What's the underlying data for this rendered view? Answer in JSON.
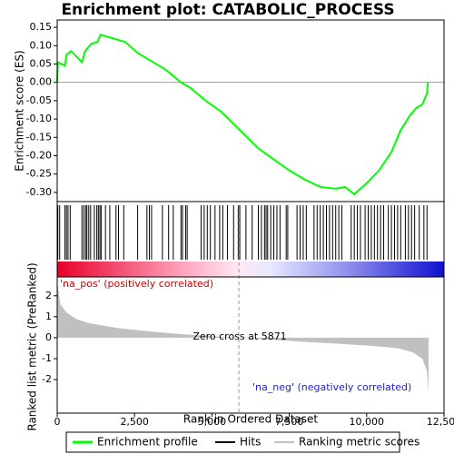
{
  "chart_data": [
    {
      "type": "line",
      "title": "Enrichment plot: CATABOLIC_PROCESS",
      "ylabel": "Enrichment score (ES)",
      "ylim": [
        -0.325,
        0.17
      ],
      "yticks": [
        {
          "value": -0.3,
          "label": "-0.30"
        },
        {
          "value": -0.25,
          "label": "-0.25"
        },
        {
          "value": -0.2,
          "label": "-0.20"
        },
        {
          "value": -0.15,
          "label": "-0.15"
        },
        {
          "value": -0.1,
          "label": "-0.10"
        },
        {
          "value": -0.05,
          "label": "-0.05"
        },
        {
          "value": 0,
          "label": "0.00"
        },
        {
          "value": 0.05,
          "label": "0.05"
        },
        {
          "value": 0.1,
          "label": "0.10"
        },
        {
          "value": 0.15,
          "label": "0.15"
        }
      ],
      "series": [
        {
          "name": "Enrichment profile",
          "color": "#00ff00",
          "x": [
            0,
            20,
            250,
            300,
            450,
            800,
            900,
            1100,
            1300,
            1400,
            1800,
            2000,
            2200,
            2600,
            3000,
            3500,
            4000,
            4300,
            4800,
            5300,
            5900,
            6500,
            7000,
            7500,
            8000,
            8500,
            9000,
            9300,
            9600,
            10000,
            10400,
            10800,
            11100,
            11400,
            11600,
            11800,
            11950,
            11980
          ],
          "values": [
            0.0,
            0.055,
            0.045,
            0.075,
            0.085,
            0.055,
            0.085,
            0.105,
            0.11,
            0.13,
            0.12,
            0.115,
            0.11,
            0.08,
            0.06,
            0.035,
            0.0,
            -0.015,
            -0.05,
            -0.08,
            -0.13,
            -0.18,
            -0.21,
            -0.24,
            -0.265,
            -0.285,
            -0.29,
            -0.285,
            -0.305,
            -0.275,
            -0.24,
            -0.19,
            -0.13,
            -0.09,
            -0.07,
            -0.06,
            -0.03,
            0.0
          ]
        }
      ]
    },
    {
      "type": "hits",
      "series": [
        {
          "name": "Hits",
          "color": "#000000",
          "x": [
            20,
            80,
            250,
            300,
            350,
            420,
            800,
            860,
            920,
            960,
            1020,
            1080,
            1200,
            1280,
            1330,
            1380,
            1420,
            1560,
            1700,
            1900,
            1980,
            2150,
            2600,
            2900,
            2980,
            3050,
            3400,
            3600,
            3750,
            4000,
            4050,
            4150,
            4200,
            4650,
            4750,
            4850,
            4950,
            5100,
            5250,
            5350,
            5500,
            5700,
            5850,
            5900,
            6100,
            6300,
            6500,
            6600,
            6700,
            6750,
            6800,
            6900,
            7000,
            7100,
            7200,
            7400,
            7450,
            7750,
            7850,
            7950,
            8050,
            8300,
            8400,
            8500,
            8600,
            8700,
            8800,
            8900,
            9000,
            9100,
            9200,
            9500,
            9600,
            9700,
            9800,
            9950,
            10050,
            10150,
            10250,
            10350,
            10450,
            10550,
            10700,
            10800,
            10900,
            11000,
            11100,
            11250,
            11350,
            11450,
            11550,
            11700,
            11850,
            11950
          ]
        }
      ]
    },
    {
      "type": "area",
      "ylabel": "Ranked list metric (PreRanked)",
      "xlabel": "Rank in Ordered Dataset",
      "xlim": [
        0,
        12500
      ],
      "xticks": [
        0,
        {
          "value": 2500,
          "label": "2,500"
        },
        {
          "value": 5000,
          "label": "5,000"
        },
        {
          "value": 7500,
          "label": "7,500"
        },
        {
          "value": 10000,
          "label": "10,000"
        },
        {
          "value": 12500,
          "label": "12,500"
        }
      ],
      "ylim": [
        -3.6,
        2.9
      ],
      "yticks": [
        -2,
        -1,
        0,
        1,
        2
      ],
      "series": [
        {
          "name": "Ranking metric scores",
          "color": "#c0c0c0",
          "x": [
            0,
            100,
            300,
            600,
            1000,
            2000,
            3000,
            4000,
            5000,
            5871,
            7000,
            8000,
            9000,
            10000,
            11000,
            11500,
            11800,
            11950,
            12000
          ],
          "values": [
            2.7,
            1.6,
            1.2,
            0.9,
            0.7,
            0.45,
            0.3,
            0.17,
            0.07,
            0,
            -0.1,
            -0.2,
            -0.28,
            -0.37,
            -0.5,
            -0.7,
            -1.0,
            -1.6,
            -2.6
          ]
        }
      ],
      "zero_cross": 5871,
      "annotations": [
        "'na_pos' (positively correlated)",
        "Zero cross at 5871",
        "'na_neg' (negatively correlated)"
      ]
    }
  ]
}
